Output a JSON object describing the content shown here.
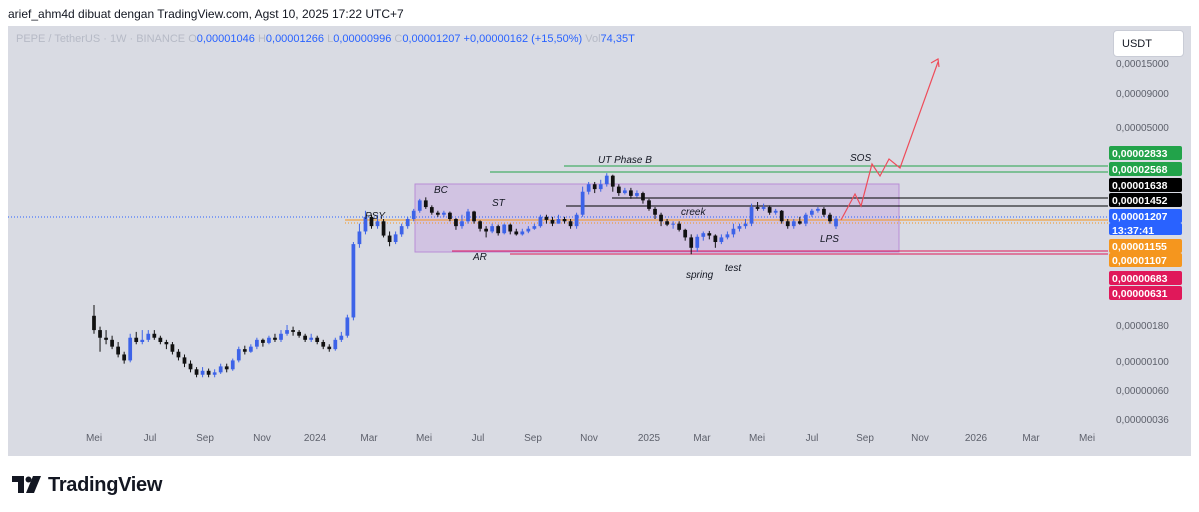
{
  "header": {
    "attribution": "arief_ahm4d dibuat dengan TradingView.com, Agst 10, 2025 17:22 UTC+7"
  },
  "symbol_bar": {
    "symbol": "PEPE / TetherUS · 1W · BINANCE",
    "o_label": "O",
    "o_value": "0,00001046",
    "h_label": "H",
    "h_value": "0,00001266",
    "l_label": "L",
    "l_value": "0,00000996",
    "c_label": "C",
    "c_value": "0,00001207",
    "change": "+0,00000162 (+15,50%)",
    "vol_label": "Vol",
    "vol_value": "74,35T"
  },
  "axis_unit": "USDT",
  "brand": {
    "name": "TradingView",
    "logo_icon": "tradingview-logo-icon"
  },
  "colors": {
    "up": "#3d63e8",
    "down": "#111111",
    "background": "#d9dbe3",
    "range_box": "#c8a6e0",
    "green_line": "#22a34a",
    "red_line": "#e0185a",
    "orange_line": "#f5961e",
    "projection": "#ee4c5a",
    "dotted": "#2962ff"
  },
  "chart_data": {
    "type": "candlestick",
    "scale": "log",
    "ylim": [
      3e-07,
      2.4e-05
    ],
    "y_ticks": [
      "0,00015000",
      "0,00009000",
      "0,00005000",
      "0,00000180",
      "0,00000100",
      "0,00000060",
      "0,00000036"
    ],
    "x_ticks": [
      "Mei",
      "Jul",
      "Sep",
      "Nov",
      "2024",
      "Mar",
      "Mei",
      "Jul",
      "Sep",
      "Nov",
      "2025",
      "Mar",
      "Mei",
      "Jul",
      "Sep",
      "Nov",
      "2026",
      "Mar",
      "Mei"
    ],
    "price_labels": [
      {
        "value": "0,00002833",
        "color": "#22a34a"
      },
      {
        "value": "0,00002568",
        "color": "#22a34a"
      },
      {
        "value": "0,00001638",
        "color": "#000000"
      },
      {
        "value": "0,00001452",
        "color": "#000000"
      },
      {
        "value": "0,00001207",
        "color": "#2962ff"
      },
      {
        "value": "13:37:41",
        "color": "#2962ff"
      },
      {
        "value": "0,00001155",
        "color": "#f5961e"
      },
      {
        "value": "0,00001107",
        "color": "#f5961e"
      },
      {
        "value": "0,00000683",
        "color": "#e0185a"
      },
      {
        "value": "0,00000631",
        "color": "#e0185a"
      }
    ],
    "annotations": [
      "PSY",
      "BC",
      "ST",
      "AR",
      "UT Phase B",
      "creek",
      "spring",
      "test",
      "LPS",
      "SOS"
    ],
    "candles": [
      [
        1.96e-06,
        1.5e-06,
        2.4e-06,
        1.4e-06
      ],
      [
        1.5e-06,
        1.3e-06,
        1.6e-06,
        1e-06
      ],
      [
        1.3e-06,
        1.25e-06,
        1.5e-06,
        1.15e-06
      ],
      [
        1.25e-06,
        1.1e-06,
        1.35e-06,
        1.05e-06
      ],
      [
        1.1e-06,
        9.5e-07,
        1.2e-06,
        9e-07
      ],
      [
        9.5e-07,
        8.5e-07,
        1e-06,
        8e-07
      ],
      [
        8.5e-07,
        1.3e-06,
        1.4e-06,
        8.2e-07
      ],
      [
        1.3e-06,
        1.2e-06,
        1.45e-06,
        1.15e-06
      ],
      [
        1.2e-06,
        1.25e-06,
        1.5e-06,
        1.15e-06
      ],
      [
        1.25e-06,
        1.4e-06,
        1.5e-06,
        1.2e-06
      ],
      [
        1.4e-06,
        1.3e-06,
        1.5e-06,
        1.25e-06
      ],
      [
        1.3e-06,
        1.2e-06,
        1.35e-06,
        1.15e-06
      ],
      [
        1.2e-06,
        1.15e-06,
        1.25e-06,
        1.05e-06
      ],
      [
        1.15e-06,
        1e-06,
        1.2e-06,
        9.5e-07
      ],
      [
        1e-06,
        9e-07,
        1.05e-06,
        8.5e-07
      ],
      [
        9e-07,
        8e-07,
        9.5e-07,
        7.5e-07
      ],
      [
        8e-07,
        7.2e-07,
        8.5e-07,
        6.8e-07
      ],
      [
        7.2e-07,
        6.5e-07,
        7.5e-07,
        6.2e-07
      ],
      [
        6.5e-07,
        7e-07,
        7.5e-07,
        6.2e-07
      ],
      [
        7e-07,
        6.5e-07,
        7.3e-07,
        6.2e-07
      ],
      [
        6.5e-07,
        6.8e-07,
        7.2e-07,
        6.2e-07
      ],
      [
        6.8e-07,
        7.6e-07,
        8e-07,
        6.6e-07
      ],
      [
        7.6e-07,
        7.2e-07,
        8e-07,
        6.8e-07
      ],
      [
        7.2e-07,
        8.5e-07,
        8.8e-07,
        7e-07
      ],
      [
        8.5e-07,
        1.05e-06,
        1.1e-06,
        8.2e-07
      ],
      [
        1.05e-06,
        1e-06,
        1.12e-06,
        9.5e-07
      ],
      [
        1e-06,
        1.1e-06,
        1.15e-06,
        9.8e-07
      ],
      [
        1.1e-06,
        1.25e-06,
        1.3e-06,
        1.05e-06
      ],
      [
        1.25e-06,
        1.18e-06,
        1.28e-06,
        1.1e-06
      ],
      [
        1.18e-06,
        1.3e-06,
        1.35e-06,
        1.15e-06
      ],
      [
        1.3e-06,
        1.25e-06,
        1.4e-06,
        1.2e-06
      ],
      [
        1.25e-06,
        1.4e-06,
        1.5e-06,
        1.2e-06
      ],
      [
        1.4e-06,
        1.5e-06,
        1.65e-06,
        1.35e-06
      ],
      [
        1.5e-06,
        1.45e-06,
        1.6e-06,
        1.35e-06
      ],
      [
        1.45e-06,
        1.35e-06,
        1.5e-06,
        1.3e-06
      ],
      [
        1.35e-06,
        1.25e-06,
        1.4e-06,
        1.2e-06
      ],
      [
        1.25e-06,
        1.3e-06,
        1.4e-06,
        1.2e-06
      ],
      [
        1.3e-06,
        1.2e-06,
        1.35e-06,
        1.15e-06
      ],
      [
        1.2e-06,
        1.1e-06,
        1.25e-06,
        1.05e-06
      ],
      [
        1.1e-06,
        1.05e-06,
        1.15e-06,
        1e-06
      ],
      [
        1.05e-06,
        1.25e-06,
        1.3e-06,
        1.02e-06
      ],
      [
        1.25e-06,
        1.35e-06,
        1.45e-06,
        1.2e-06
      ],
      [
        1.35e-06,
        1.9e-06,
        2e-06,
        1.3e-06
      ],
      [
        1.9e-06,
        7.5e-06,
        7.8e-06,
        1.8e-06
      ],
      [
        7.5e-06,
        9.5e-06,
        1.1e-05,
        7e-06
      ],
      [
        9.5e-06,
        1.25e-05,
        1.4e-05,
        9e-06
      ],
      [
        1.25e-05,
        1.05e-05,
        1.3e-05,
        1e-05
      ],
      [
        1.05e-05,
        1.15e-05,
        1.3e-05,
        1e-05
      ],
      [
        1.15e-05,
        8.8e-06,
        1.2e-05,
        8.5e-06
      ],
      [
        8.8e-06,
        7.8e-06,
        9.5e-06,
        7.2e-06
      ],
      [
        7.8e-06,
        9e-06,
        9.5e-06,
        7.5e-06
      ],
      [
        9e-06,
        1.05e-05,
        1.1e-05,
        8.6e-06
      ],
      [
        1.05e-05,
        1.2e-05,
        1.25e-05,
        1e-05
      ],
      [
        1.2e-05,
        1.4e-05,
        1.45e-05,
        1.15e-05
      ],
      [
        1.4e-05,
        1.7e-05,
        1.75e-05,
        1.35e-05
      ],
      [
        1.7e-05,
        1.5e-05,
        1.8e-05,
        1.45e-05
      ],
      [
        1.5e-05,
        1.35e-05,
        1.55e-05,
        1.3e-05
      ],
      [
        1.35e-05,
        1.3e-05,
        1.4e-05,
        1.25e-05
      ],
      [
        1.3e-05,
        1.35e-05,
        1.4e-05,
        1.25e-05
      ],
      [
        1.35e-05,
        1.2e-05,
        1.38e-05,
        1.15e-05
      ],
      [
        1.2e-05,
        1.05e-05,
        1.22e-05,
        9.8e-06
      ],
      [
        1.05e-05,
        1.15e-05,
        1.3e-05,
        1e-05
      ],
      [
        1.15e-05,
        1.38e-05,
        1.45e-05,
        1.1e-05
      ],
      [
        1.38e-05,
        1.15e-05,
        1.4e-05,
        1.1e-05
      ],
      [
        1.15e-05,
        1e-05,
        1.17e-05,
        9.5e-06
      ],
      [
        1e-05,
        9.5e-06,
        1.05e-05,
        8.5e-06
      ],
      [
        9.5e-06,
        1.05e-05,
        1.1e-05,
        9.2e-06
      ],
      [
        1.05e-05,
        9.2e-06,
        1.08e-05,
        8.8e-06
      ],
      [
        9.2e-06,
        1.08e-05,
        1.1e-05,
        9e-06
      ],
      [
        1.08e-05,
        9.5e-06,
        1.1e-05,
        9e-06
      ],
      [
        9.5e-06,
        9e-06,
        1e-05,
        8.8e-06
      ],
      [
        9e-06,
        9.5e-06,
        1e-05,
        8.8e-06
      ],
      [
        9.5e-06,
        1e-05,
        1.05e-05,
        9.2e-06
      ],
      [
        1e-05,
        1.05e-05,
        1.1e-05,
        9.8e-06
      ],
      [
        1.05e-05,
        1.25e-05,
        1.3e-05,
        1.02e-05
      ],
      [
        1.25e-05,
        1.18e-05,
        1.3e-05,
        1.1e-05
      ],
      [
        1.18e-05,
        1.1e-05,
        1.25e-05,
        1.05e-05
      ],
      [
        1.1e-05,
        1.2e-05,
        1.3e-05,
        1.1e-05
      ],
      [
        1.2e-05,
        1.15e-05,
        1.25e-05,
        1.1e-05
      ],
      [
        1.15e-05,
        1.05e-05,
        1.2e-05,
        1e-05
      ],
      [
        1.05e-05,
        1.3e-05,
        1.35e-05,
        1e-05
      ],
      [
        1.3e-05,
        2e-05,
        2.2e-05,
        1.25e-05
      ],
      [
        2e-05,
        2.3e-05,
        2.4e-05,
        1.9e-05
      ],
      [
        2.3e-05,
        2.1e-05,
        2.4e-05,
        1.95e-05
      ],
      [
        2.1e-05,
        2.3e-05,
        2.5e-05,
        2e-05
      ],
      [
        2.3e-05,
        2.7e-05,
        2.83e-05,
        2.2e-05
      ],
      [
        2.7e-05,
        2.2e-05,
        2.75e-05,
        2e-05
      ],
      [
        2.2e-05,
        1.95e-05,
        2.3e-05,
        1.85e-05
      ],
      [
        1.95e-05,
        2.05e-05,
        2.15e-05,
        1.9e-05
      ],
      [
        2.05e-05,
        1.85e-05,
        2.15e-05,
        1.75e-05
      ],
      [
        1.85e-05,
        1.95e-05,
        2.05e-05,
        1.8e-05
      ],
      [
        1.95e-05,
        1.7e-05,
        2e-05,
        1.6e-05
      ],
      [
        1.7e-05,
        1.45e-05,
        1.75e-05,
        1.4e-05
      ],
      [
        1.45e-05,
        1.3e-05,
        1.5e-05,
        1.2e-05
      ],
      [
        1.3e-05,
        1.15e-05,
        1.35e-05,
        1.05e-05
      ],
      [
        1.15e-05,
        1.08e-05,
        1.2e-05,
        1.05e-05
      ],
      [
        1.08e-05,
        1.1e-05,
        1.15e-05,
        1e-05
      ],
      [
        1.1e-05,
        9.8e-06,
        1.15e-05,
        9.5e-06
      ],
      [
        9.8e-06,
        8.5e-06,
        1e-05,
        8e-06
      ],
      [
        8.5e-06,
        7e-06,
        9e-06,
        6.2e-06
      ],
      [
        7e-06,
        8.6e-06,
        9e-06,
        6.5e-06
      ],
      [
        8.6e-06,
        9.2e-06,
        9.5e-06,
        8e-06
      ],
      [
        9.2e-06,
        8.8e-06,
        9.6e-06,
        8.2e-06
      ],
      [
        8.8e-06,
        7.8e-06,
        9e-06,
        7e-06
      ],
      [
        7.8e-06,
        8.5e-06,
        9e-06,
        7.5e-06
      ],
      [
        8.5e-06,
        9e-06,
        9.5e-06,
        8.2e-06
      ],
      [
        9e-06,
        1e-05,
        1.1e-05,
        8.5e-06
      ],
      [
        1e-05,
        1.05e-05,
        1.1e-05,
        9.5e-06
      ],
      [
        1.05e-05,
        1.1e-05,
        1.2e-05,
        1e-05
      ],
      [
        1.1e-05,
        1.5e-05,
        1.6e-05,
        1.05e-05
      ],
      [
        1.5e-05,
        1.45e-05,
        1.65e-05,
        1.4e-05
      ],
      [
        1.45e-05,
        1.5e-05,
        1.6e-05,
        1.4e-05
      ],
      [
        1.5e-05,
        1.35e-05,
        1.55e-05,
        1.3e-05
      ],
      [
        1.35e-05,
        1.4e-05,
        1.45e-05,
        1.3e-05
      ],
      [
        1.4e-05,
        1.15e-05,
        1.42e-05,
        1.1e-05
      ],
      [
        1.15e-05,
        1.05e-05,
        1.2e-05,
        1e-05
      ],
      [
        1.05e-05,
        1.15e-05,
        1.2e-05,
        1e-05
      ],
      [
        1.15e-05,
        1.1e-05,
        1.25e-05,
        1.08e-05
      ],
      [
        1.1e-05,
        1.3e-05,
        1.35e-05,
        1.05e-05
      ],
      [
        1.3e-05,
        1.4e-05,
        1.45e-05,
        1.25e-05
      ],
      [
        1.4e-05,
        1.45e-05,
        1.5e-05,
        1.35e-05
      ],
      [
        1.45e-05,
        1.3e-05,
        1.5e-05,
        1.25e-05
      ],
      [
        1.3e-05,
        1.15e-05,
        1.35e-05,
        1.1e-05
      ],
      [
        1.046e-05,
        1.207e-05,
        1.266e-05,
        9.96e-06
      ]
    ]
  }
}
